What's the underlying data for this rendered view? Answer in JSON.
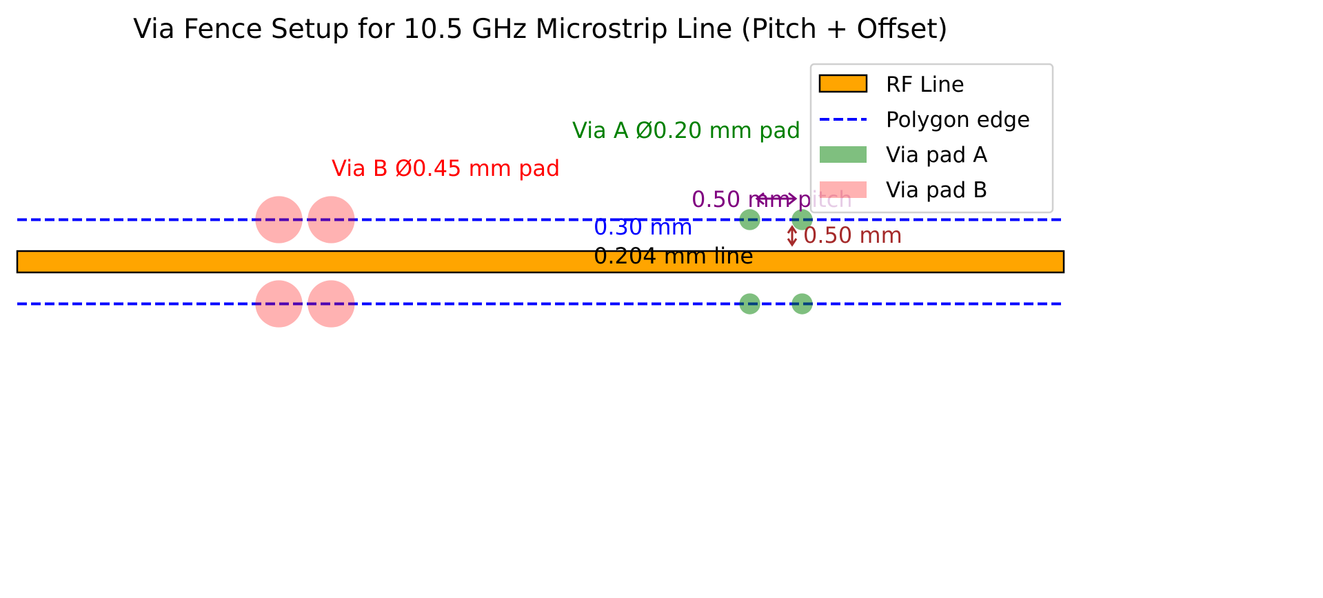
{
  "title": "Via Fence Setup for 10.5 GHz Microstrip Line (Pitch + Offset)",
  "chart_data": {
    "type": "diagram",
    "units": "mm",
    "xlim": [
      0,
      10
    ],
    "rf_line": {
      "x_start": 0,
      "x_end": 10,
      "width": 0.204,
      "color": "#ffa500"
    },
    "polygon_edges": {
      "offset_from_line_edge": 0.3,
      "y": [
        0.402,
        -0.402
      ],
      "color": "#0000ff",
      "style": "dashed"
    },
    "via_pads_a": {
      "diameter": 0.2,
      "x": [
        7.0,
        7.5
      ],
      "color": "#008000",
      "alpha": 0.5
    },
    "via_pads_b": {
      "diameter": 0.45,
      "x": [
        2.5,
        3.0
      ],
      "color": "#ff0000",
      "alpha": 0.3
    },
    "annotations": {
      "via_b": {
        "text": "Via B Ø0.45 mm pad",
        "color": "#ff0000"
      },
      "via_a": {
        "text": "Via A Ø0.20 mm pad",
        "color": "#008000"
      },
      "pitch": {
        "text": "0.50 mm pitch",
        "color": "#800080"
      },
      "offset": {
        "text": "0.30 mm",
        "color": "#0000ff"
      },
      "line_width": {
        "text": "0.204 mm line",
        "color": "#000000"
      },
      "pad_spacing": {
        "text": "0.50 mm",
        "color": "#a52a2a"
      }
    },
    "legend": {
      "placement": "top-right",
      "entries": [
        "RF Line",
        "Polygon edge",
        "Via pad A",
        "Via pad B"
      ]
    }
  }
}
